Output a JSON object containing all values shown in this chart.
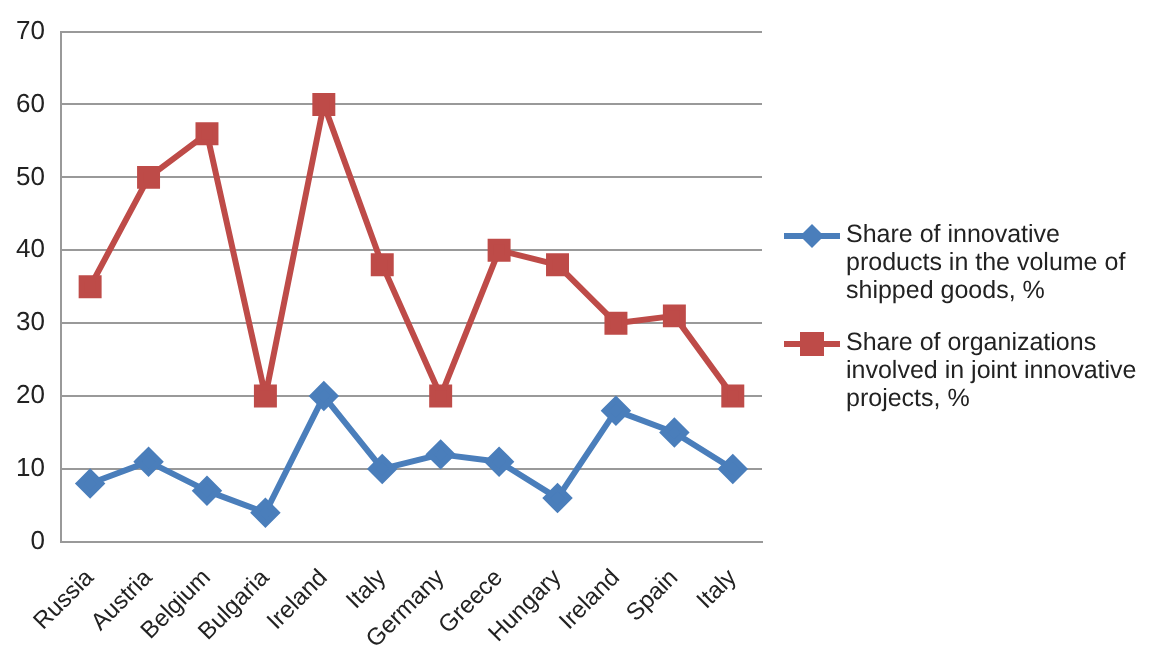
{
  "chart_data": {
    "type": "line",
    "categories": [
      "Russia",
      "Austria",
      "Belgium",
      "Bulgaria",
      "Ireland",
      "Italy",
      "Germany",
      "Greece",
      "Hungary",
      "Ireland",
      "Spain",
      "Italy"
    ],
    "series": [
      {
        "name": "Share of innovative products in the volume of shipped goods, %",
        "color": "#4a7ebb",
        "marker": "diamond",
        "values": [
          8,
          11,
          7,
          4,
          20,
          10,
          12,
          11,
          6,
          18,
          15,
          10
        ]
      },
      {
        "name": "Share of organizations involved in joint innovative projects, %",
        "color": "#be4b48",
        "marker": "square",
        "values": [
          35,
          50,
          56,
          20,
          60,
          38,
          20,
          40,
          38,
          30,
          31,
          20
        ]
      }
    ],
    "ylim": [
      0,
      70
    ],
    "yticks": [
      0,
      10,
      20,
      30,
      40,
      50,
      60,
      70
    ],
    "grid": "y",
    "legend": "right",
    "line_style": "solid"
  }
}
